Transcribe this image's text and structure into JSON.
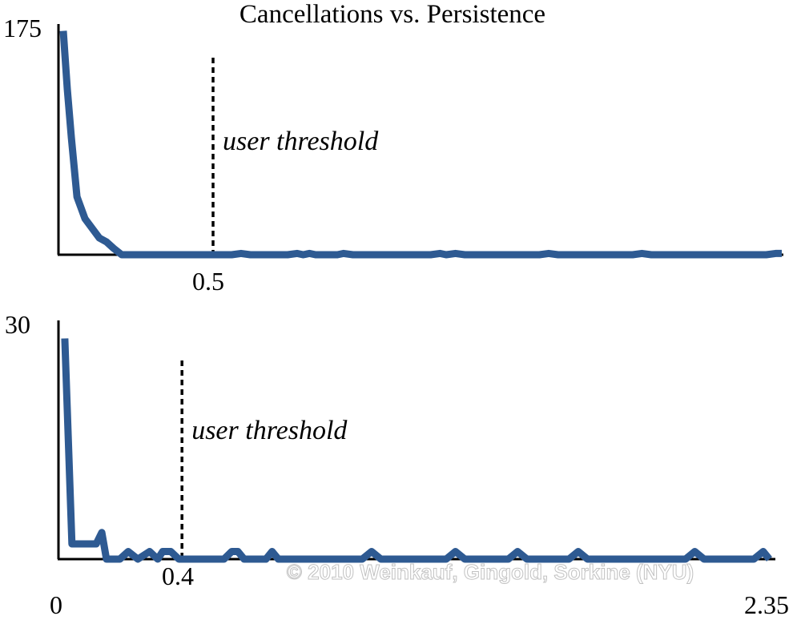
{
  "chart_data": [
    {
      "type": "line",
      "title": "Cancellations vs. Persistence",
      "xlim": [
        0,
        2.35
      ],
      "ylim": [
        0,
        175
      ],
      "y_tick_labels": [
        "175"
      ],
      "x_tick_labels": [
        "0.5"
      ],
      "threshold": {
        "x": 0.5,
        "label": "user threshold"
      },
      "color": "#2e5a92",
      "x": [
        0.018,
        0.031,
        0.044,
        0.062,
        0.088,
        0.134,
        0.157,
        0.18,
        0.206,
        0.56,
        0.59,
        0.62,
        0.74,
        0.77,
        0.79,
        0.81,
        0.83,
        0.9,
        0.92,
        0.95,
        1.2,
        1.23,
        1.25,
        1.28,
        1.31,
        1.55,
        1.58,
        1.61,
        1.85,
        1.88,
        1.91,
        2.28,
        2.31,
        2.33
      ],
      "y": [
        174,
        129,
        91,
        45,
        28,
        13,
        10,
        5,
        0,
        0,
        1,
        0,
        0,
        1,
        0,
        1,
        0,
        0,
        1,
        0,
        0,
        1,
        0,
        1,
        0,
        0,
        1,
        0,
        0,
        1,
        0,
        0,
        1,
        1
      ]
    },
    {
      "type": "line",
      "xlim": [
        0,
        2.35
      ],
      "ylim": [
        0,
        30
      ],
      "y_tick_labels": [
        "30"
      ],
      "x_tick_labels": [
        "0",
        "0.4",
        "2.35"
      ],
      "threshold": {
        "x": 0.4,
        "label": "user threshold"
      },
      "color": "#2e5a92",
      "x": [
        0.023,
        0.046,
        0.124,
        0.142,
        0.157,
        0.2,
        0.227,
        0.258,
        0.296,
        0.322,
        0.338,
        0.364,
        0.39,
        0.535,
        0.56,
        0.58,
        0.6,
        0.67,
        0.69,
        0.71,
        0.98,
        1.01,
        1.04,
        1.25,
        1.28,
        1.31,
        1.45,
        1.48,
        1.51,
        1.645,
        1.675,
        1.705,
        2.02,
        2.05,
        2.08,
        2.24,
        2.27,
        2.29
      ],
      "y": [
        29,
        2,
        2,
        3.5,
        0,
        0,
        1,
        0,
        1,
        0,
        1,
        1,
        0,
        0,
        1,
        1,
        0,
        0,
        1,
        0,
        0,
        1,
        0,
        0,
        1,
        0,
        0,
        1,
        0,
        0,
        1,
        0,
        0,
        1,
        0,
        0,
        1,
        0
      ]
    }
  ],
  "watermark": "© 2010 Weinkauf, Gingold, Sorkine (NYU)"
}
